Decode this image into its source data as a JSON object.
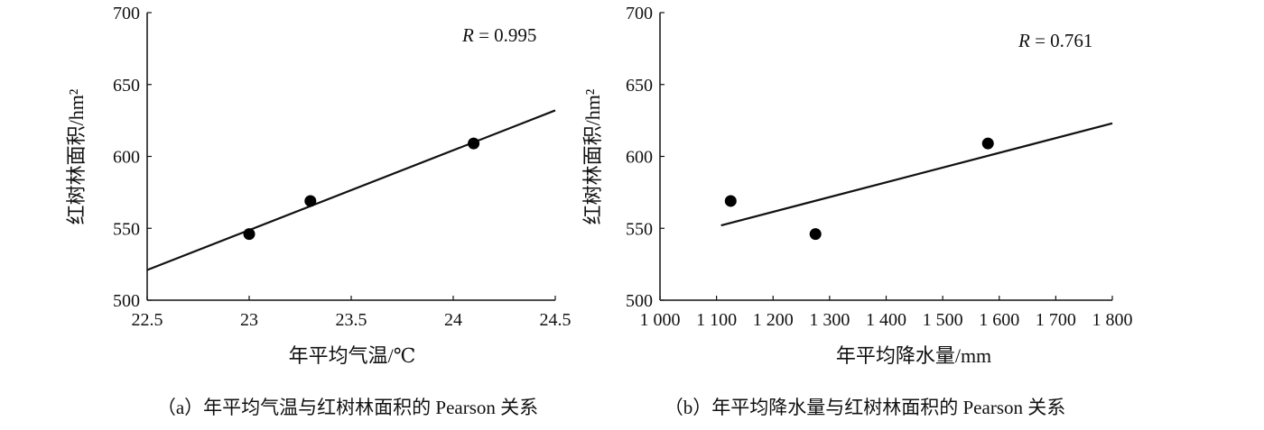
{
  "chart_data": [
    {
      "type": "scatter",
      "id": "a",
      "xlabel": "年平均气温/℃",
      "ylabel": "红树林面积/hm²",
      "annotation_var": "R",
      "annotation_val": " = 0.995",
      "xlim": [
        22.5,
        24.5
      ],
      "ylim": [
        500,
        700
      ],
      "xticks": [
        22.5,
        23,
        23.5,
        24,
        24.5
      ],
      "xtick_labels": [
        "22.5",
        "23",
        "23.5",
        "24",
        "24.5"
      ],
      "yticks": [
        500,
        550,
        600,
        650,
        700
      ],
      "ytick_labels": [
        "500",
        "550",
        "600",
        "650",
        "700"
      ],
      "points": [
        [
          23,
          546
        ],
        [
          23.3,
          569
        ],
        [
          24.1,
          609
        ]
      ],
      "fit_line": [
        [
          22.5,
          521
        ],
        [
          24.5,
          632
        ]
      ],
      "caption": "（a）年平均气温与红树林面积的 Pearson 关系"
    },
    {
      "type": "scatter",
      "id": "b",
      "xlabel": "年平均降水量/mm",
      "ylabel": "红树林面积/hm²",
      "annotation_var": "R",
      "annotation_val": " = 0.761",
      "xlim": [
        1000,
        1800
      ],
      "ylim": [
        500,
        700
      ],
      "xticks": [
        1000,
        1100,
        1200,
        1300,
        1400,
        1500,
        1600,
        1700,
        1800
      ],
      "xtick_labels": [
        "1 000",
        "1 100",
        "1 200",
        "1 300",
        "1 400",
        "1 500",
        "1 600",
        "1 700",
        "1 800"
      ],
      "yticks": [
        500,
        550,
        600,
        650,
        700
      ],
      "ytick_labels": [
        "500",
        "550",
        "600",
        "650",
        "700"
      ],
      "points": [
        [
          1125,
          569
        ],
        [
          1275,
          546
        ],
        [
          1580,
          609
        ]
      ],
      "fit_line": [
        [
          1108,
          552
        ],
        [
          1800,
          623
        ]
      ],
      "caption": "（b）年平均降水量与红树林面积的 Pearson 关系"
    }
  ]
}
